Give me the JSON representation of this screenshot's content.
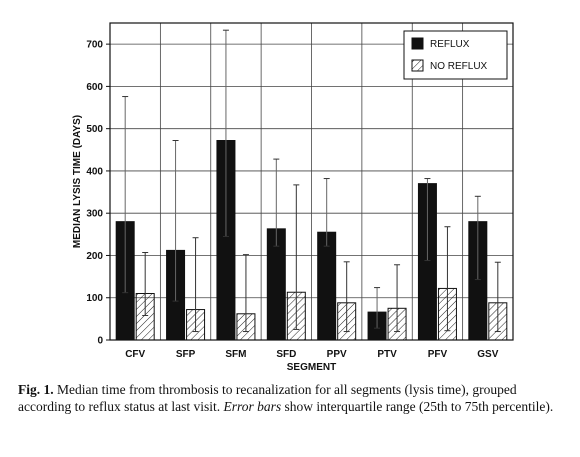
{
  "chart_data": {
    "type": "bar",
    "xlabel": "SEGMENT",
    "ylabel": "MEDIAN LYSIS TIME (DAYS)",
    "ylim": [
      0,
      750
    ],
    "yticks": [
      0,
      100,
      200,
      300,
      400,
      500,
      600,
      700
    ],
    "categories": [
      "CFV",
      "SFP",
      "SFM",
      "SFD",
      "PPV",
      "PTV",
      "PFV",
      "GSV"
    ],
    "grid": true,
    "legend_position": "top-right",
    "series": [
      {
        "name": "REFLUX",
        "fill": "solid-black",
        "values": [
          280,
          212,
          472,
          263,
          255,
          66,
          370,
          280
        ],
        "error_low": [
          112,
          92,
          245,
          222,
          222,
          28,
          188,
          143
        ],
        "error_high": [
          576,
          472,
          733,
          428,
          382,
          124,
          382,
          340
        ]
      },
      {
        "name": "NO REFLUX",
        "fill": "hatched",
        "values": [
          110,
          72,
          62,
          113,
          88,
          75,
          122,
          88
        ],
        "error_low": [
          58,
          20,
          20,
          25,
          20,
          20,
          22,
          20
        ],
        "error_high": [
          207,
          242,
          202,
          367,
          185,
          178,
          268,
          184
        ]
      }
    ]
  },
  "caption": {
    "label": "Fig. 1.",
    "text_before": " Median time from thrombosis to recanalization for all segments (lysis time), grouped according to reflux status at last visit. ",
    "emphasis": "Error bars",
    "text_after": " show interquartile range (25th to 75th percentile)."
  }
}
